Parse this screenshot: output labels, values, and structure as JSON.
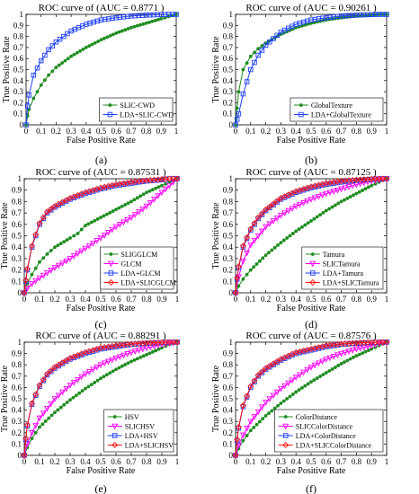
{
  "captions": [
    "(a)",
    "(b)",
    "(c)",
    "(d)",
    "(e)",
    "(f)"
  ],
  "chart_data": [
    {
      "type": "line",
      "title": "ROC curve of (AUC = 0.8771 )",
      "xlabel": "False Positive Rate",
      "ylabel": "True Positive Rate",
      "xlim": [
        0,
        1
      ],
      "ylim": [
        0,
        1
      ],
      "x_ticks": [
        "0",
        "0.1",
        "0.2",
        "0.3",
        "0.4",
        "0.5",
        "0.6",
        "0.7",
        "0.8",
        "0.9",
        "1"
      ],
      "y_ticks": [
        "0",
        "0.1",
        "0.2",
        "0.3",
        "0.4",
        "0.5",
        "0.6",
        "0.7",
        "0.8",
        "0.9",
        "1"
      ],
      "legend_position": "bottom-right",
      "series": [
        {
          "name": "SLIC-CWD",
          "color": "#1e8c1e",
          "marker": "dot",
          "x": [
            0,
            0.01,
            0.02,
            0.05,
            0.1,
            0.15,
            0.2,
            0.3,
            0.4,
            0.5,
            0.6,
            0.7,
            0.8,
            0.9,
            0.95,
            1.0
          ],
          "y": [
            0,
            0.08,
            0.14,
            0.24,
            0.36,
            0.45,
            0.52,
            0.62,
            0.7,
            0.77,
            0.83,
            0.88,
            0.92,
            0.96,
            0.98,
            1.0
          ]
        },
        {
          "name": "LDA+SLIC-CWD",
          "color": "#1f3fff",
          "marker": "square",
          "x": [
            0,
            0.01,
            0.02,
            0.05,
            0.1,
            0.15,
            0.2,
            0.3,
            0.4,
            0.5,
            0.6,
            0.7,
            0.8,
            0.9,
            0.95,
            1.0
          ],
          "y": [
            0,
            0.17,
            0.27,
            0.45,
            0.58,
            0.68,
            0.75,
            0.85,
            0.91,
            0.95,
            0.97,
            0.985,
            0.993,
            0.998,
            1.0,
            1.0
          ]
        }
      ]
    },
    {
      "type": "line",
      "title": "ROC curve of (AUC = 0.90261 )",
      "xlabel": "False Positive Rate",
      "ylabel": "True Positive Rate",
      "xlim": [
        0,
        1
      ],
      "ylim": [
        0,
        1
      ],
      "x_ticks": [
        "0",
        "0.1",
        "0.2",
        "0.3",
        "0.4",
        "0.5",
        "0.6",
        "0.7",
        "0.8",
        "0.9",
        "1"
      ],
      "y_ticks": [
        "0",
        "0.1",
        "0.2",
        "0.3",
        "0.4",
        "0.5",
        "0.6",
        "0.7",
        "0.8",
        "0.9",
        "1"
      ],
      "legend_position": "bottom-right",
      "series": [
        {
          "name": "GlobalTexture",
          "color": "#1e8c1e",
          "marker": "dot",
          "x": [
            0,
            0.01,
            0.02,
            0.05,
            0.1,
            0.15,
            0.2,
            0.3,
            0.4,
            0.5,
            0.6,
            0.7,
            0.8,
            0.9,
            0.95,
            1.0
          ],
          "y": [
            0,
            0.15,
            0.3,
            0.5,
            0.62,
            0.69,
            0.74,
            0.82,
            0.88,
            0.92,
            0.95,
            0.97,
            0.985,
            0.995,
            1.0,
            1.0
          ]
        },
        {
          "name": "LDA+GlobalTexture",
          "color": "#1f3fff",
          "marker": "square",
          "x": [
            0,
            0.01,
            0.02,
            0.05,
            0.1,
            0.15,
            0.2,
            0.3,
            0.4,
            0.5,
            0.6,
            0.7,
            0.8,
            0.9,
            0.95,
            1.0
          ],
          "y": [
            0,
            0.05,
            0.1,
            0.28,
            0.5,
            0.63,
            0.72,
            0.84,
            0.91,
            0.95,
            0.97,
            0.985,
            0.993,
            0.998,
            1.0,
            1.0
          ]
        }
      ]
    },
    {
      "type": "line",
      "title": "ROC curve of (AUC = 0.87531 )",
      "xlabel": "False Positive Rate",
      "ylabel": "True Positive Rate",
      "xlim": [
        0,
        1
      ],
      "ylim": [
        0,
        1
      ],
      "x_ticks": [
        "0",
        "0.1",
        "0.2",
        "0.3",
        "0.4",
        "0.5",
        "0.6",
        "0.7",
        "0.8",
        "0.9",
        "1"
      ],
      "y_ticks": [
        "0",
        "0.1",
        "0.2",
        "0.3",
        "0.4",
        "0.5",
        "0.6",
        "0.7",
        "0.8",
        "0.9",
        "1"
      ],
      "legend_position": "bottom-right",
      "series": [
        {
          "name": "SLIGGLCM",
          "color": "#1e8c1e",
          "marker": "dot",
          "x": [
            0,
            0.02,
            0.05,
            0.1,
            0.15,
            0.2,
            0.3,
            0.35,
            0.4,
            0.5,
            0.6,
            0.7,
            0.8,
            0.9,
            0.95,
            1.0
          ],
          "y": [
            0,
            0.08,
            0.16,
            0.27,
            0.34,
            0.4,
            0.48,
            0.52,
            0.59,
            0.66,
            0.73,
            0.8,
            0.88,
            0.94,
            0.97,
            1.0
          ]
        },
        {
          "name": "GLCM",
          "color": "#ff00ff",
          "marker": "triangle",
          "x": [
            0,
            0.02,
            0.05,
            0.1,
            0.2,
            0.3,
            0.4,
            0.5,
            0.6,
            0.7,
            0.8,
            0.9,
            0.95,
            1.0
          ],
          "y": [
            0,
            0.04,
            0.08,
            0.13,
            0.22,
            0.3,
            0.39,
            0.48,
            0.58,
            0.66,
            0.76,
            0.88,
            0.94,
            1.0
          ]
        },
        {
          "name": "LDA+GLCM",
          "color": "#1f3fff",
          "marker": "square",
          "x": [
            0,
            0.01,
            0.02,
            0.05,
            0.1,
            0.15,
            0.2,
            0.3,
            0.4,
            0.5,
            0.6,
            0.7,
            0.8,
            0.9,
            0.95,
            1.0
          ],
          "y": [
            0,
            0.1,
            0.2,
            0.4,
            0.6,
            0.7,
            0.75,
            0.82,
            0.87,
            0.91,
            0.94,
            0.96,
            0.98,
            0.99,
            1.0,
            1.0
          ]
        },
        {
          "name": "LDA+SLICGLCM",
          "color": "#ff1010",
          "marker": "diamond",
          "x": [
            0,
            0.01,
            0.02,
            0.05,
            0.1,
            0.15,
            0.2,
            0.3,
            0.4,
            0.5,
            0.6,
            0.7,
            0.8,
            0.9,
            0.95,
            1.0
          ],
          "y": [
            0,
            0.11,
            0.21,
            0.41,
            0.61,
            0.71,
            0.76,
            0.83,
            0.88,
            0.92,
            0.95,
            0.97,
            0.985,
            0.995,
            1.0,
            1.0
          ]
        }
      ]
    },
    {
      "type": "line",
      "title": "ROC curve of (AUC = 0.87125 )",
      "xlabel": "False Positive Rate",
      "ylabel": "True Positive Rate",
      "xlim": [
        0,
        1
      ],
      "ylim": [
        0,
        1
      ],
      "x_ticks": [
        "0",
        "0.1",
        "0.2",
        "0.3",
        "0.4",
        "0.5",
        "0.6",
        "0.7",
        "0.8",
        "0.9",
        "1"
      ],
      "y_ticks": [
        "0",
        "0.1",
        "0.2",
        "0.3",
        "0.4",
        "0.5",
        "0.6",
        "0.7",
        "0.8",
        "0.9",
        "1"
      ],
      "legend_position": "bottom-right",
      "series": [
        {
          "name": "Tamura",
          "color": "#1e8c1e",
          "marker": "dot",
          "x": [
            0,
            0.02,
            0.05,
            0.1,
            0.2,
            0.3,
            0.4,
            0.5,
            0.6,
            0.7,
            0.8,
            0.9,
            0.95,
            1.0
          ],
          "y": [
            0,
            0.06,
            0.12,
            0.2,
            0.33,
            0.44,
            0.54,
            0.63,
            0.72,
            0.8,
            0.87,
            0.94,
            0.97,
            1.0
          ]
        },
        {
          "name": "SLICTamura",
          "color": "#ff00ff",
          "marker": "triangle",
          "x": [
            0,
            0.02,
            0.05,
            0.1,
            0.2,
            0.3,
            0.4,
            0.5,
            0.6,
            0.7,
            0.8,
            0.9,
            0.95,
            1.0
          ],
          "y": [
            0,
            0.14,
            0.28,
            0.42,
            0.58,
            0.68,
            0.76,
            0.82,
            0.87,
            0.91,
            0.95,
            0.98,
            0.99,
            1.0
          ]
        },
        {
          "name": "LDA+Tamura",
          "color": "#1f3fff",
          "marker": "square",
          "x": [
            0,
            0.01,
            0.02,
            0.05,
            0.1,
            0.15,
            0.2,
            0.3,
            0.4,
            0.5,
            0.6,
            0.7,
            0.8,
            0.9,
            0.95,
            1.0
          ],
          "y": [
            0,
            0.12,
            0.22,
            0.4,
            0.55,
            0.65,
            0.72,
            0.82,
            0.88,
            0.92,
            0.95,
            0.97,
            0.985,
            0.995,
            1.0,
            1.0
          ]
        },
        {
          "name": "LDA+SLICTamura",
          "color": "#ff1010",
          "marker": "diamond",
          "x": [
            0,
            0.01,
            0.02,
            0.05,
            0.1,
            0.15,
            0.2,
            0.3,
            0.4,
            0.5,
            0.6,
            0.7,
            0.8,
            0.9,
            0.95,
            1.0
          ],
          "y": [
            0,
            0.13,
            0.23,
            0.41,
            0.56,
            0.66,
            0.73,
            0.83,
            0.89,
            0.93,
            0.96,
            0.98,
            0.99,
            0.997,
            1.0,
            1.0
          ]
        }
      ]
    },
    {
      "type": "line",
      "title": "ROC curve of (AUC = 0.88291 )",
      "xlabel": "False Positive Rate",
      "ylabel": "True Positive Rate",
      "xlim": [
        0,
        1
      ],
      "ylim": [
        0,
        1
      ],
      "x_ticks": [
        "0",
        "0.1",
        "0.2",
        "0.3",
        "0.4",
        "0.5",
        "0.6",
        "0.7",
        "0.8",
        "0.9",
        "1"
      ],
      "y_ticks": [
        "0",
        "0.1",
        "0.2",
        "0.3",
        "0.4",
        "0.5",
        "0.6",
        "0.7",
        "0.8",
        "0.9",
        "1"
      ],
      "legend_position": "bottom-right",
      "series": [
        {
          "name": "HSV",
          "color": "#1e8c1e",
          "marker": "dot",
          "x": [
            0,
            0.02,
            0.05,
            0.1,
            0.2,
            0.3,
            0.4,
            0.5,
            0.6,
            0.7,
            0.8,
            0.9,
            0.95,
            1.0
          ],
          "y": [
            0,
            0.07,
            0.15,
            0.25,
            0.38,
            0.49,
            0.59,
            0.68,
            0.76,
            0.83,
            0.89,
            0.95,
            0.98,
            1.0
          ]
        },
        {
          "name": "SLICHSV",
          "color": "#ff00ff",
          "marker": "triangle",
          "x": [
            0,
            0.02,
            0.05,
            0.1,
            0.2,
            0.3,
            0.4,
            0.5,
            0.6,
            0.7,
            0.8,
            0.9,
            0.95,
            1.0
          ],
          "y": [
            0,
            0.1,
            0.2,
            0.33,
            0.5,
            0.62,
            0.72,
            0.8,
            0.86,
            0.91,
            0.95,
            0.98,
            0.99,
            1.0
          ]
        },
        {
          "name": "LDA+HSV",
          "color": "#1f3fff",
          "marker": "square",
          "x": [
            0,
            0.01,
            0.02,
            0.05,
            0.1,
            0.15,
            0.2,
            0.3,
            0.4,
            0.5,
            0.6,
            0.7,
            0.8,
            0.9,
            0.95,
            1.0
          ],
          "y": [
            0,
            0.14,
            0.26,
            0.45,
            0.61,
            0.71,
            0.77,
            0.85,
            0.9,
            0.94,
            0.96,
            0.98,
            0.99,
            0.997,
            1.0,
            1.0
          ]
        },
        {
          "name": "LDA+SLICHSV",
          "color": "#ff1010",
          "marker": "diamond",
          "x": [
            0,
            0.01,
            0.02,
            0.05,
            0.1,
            0.15,
            0.2,
            0.3,
            0.4,
            0.5,
            0.6,
            0.7,
            0.8,
            0.9,
            0.95,
            1.0
          ],
          "y": [
            0,
            0.15,
            0.27,
            0.46,
            0.62,
            0.72,
            0.78,
            0.86,
            0.91,
            0.95,
            0.97,
            0.985,
            0.993,
            0.998,
            1.0,
            1.0
          ]
        }
      ]
    },
    {
      "type": "line",
      "title": "ROC curve of (AUC = 0.87576 )",
      "xlabel": "False Positive Rate",
      "ylabel": "True Positive Rate",
      "xlim": [
        0,
        1
      ],
      "ylim": [
        0,
        1
      ],
      "x_ticks": [
        "0",
        "0.1",
        "0.2",
        "0.3",
        "0.4",
        "0.5",
        "0.6",
        "0.7",
        "0.8",
        "0.9",
        "1"
      ],
      "y_ticks": [
        "0",
        "0.1",
        "0.2",
        "0.3",
        "0.4",
        "0.5",
        "0.6",
        "0.7",
        "0.8",
        "0.9",
        "1"
      ],
      "legend_position": "bottom-right",
      "series": [
        {
          "name": "ColorDistance",
          "color": "#1e8c1e",
          "marker": "dot",
          "x": [
            0,
            0.02,
            0.05,
            0.1,
            0.2,
            0.3,
            0.4,
            0.5,
            0.6,
            0.7,
            0.8,
            0.9,
            0.95,
            1.0
          ],
          "y": [
            0,
            0.06,
            0.13,
            0.22,
            0.35,
            0.46,
            0.56,
            0.65,
            0.73,
            0.81,
            0.88,
            0.94,
            0.97,
            1.0
          ]
        },
        {
          "name": "SLICColorDistance",
          "color": "#ff00ff",
          "marker": "triangle",
          "x": [
            0,
            0.02,
            0.05,
            0.1,
            0.2,
            0.3,
            0.4,
            0.5,
            0.6,
            0.7,
            0.8,
            0.9,
            0.95,
            1.0
          ],
          "y": [
            0,
            0.09,
            0.18,
            0.3,
            0.47,
            0.59,
            0.69,
            0.78,
            0.85,
            0.9,
            0.94,
            0.97,
            0.99,
            1.0
          ]
        },
        {
          "name": "LDA+ColorDistance",
          "color": "#1f3fff",
          "marker": "square",
          "x": [
            0,
            0.01,
            0.02,
            0.05,
            0.1,
            0.15,
            0.2,
            0.3,
            0.4,
            0.5,
            0.6,
            0.7,
            0.8,
            0.9,
            0.95,
            1.0
          ],
          "y": [
            0,
            0.13,
            0.24,
            0.43,
            0.6,
            0.7,
            0.76,
            0.84,
            0.9,
            0.93,
            0.96,
            0.98,
            0.99,
            0.997,
            1.0,
            1.0
          ]
        },
        {
          "name": "LDA+SLICColorDistance",
          "color": "#ff1010",
          "marker": "diamond",
          "x": [
            0,
            0.01,
            0.02,
            0.05,
            0.1,
            0.15,
            0.2,
            0.3,
            0.4,
            0.5,
            0.6,
            0.7,
            0.8,
            0.9,
            0.95,
            1.0
          ],
          "y": [
            0,
            0.14,
            0.25,
            0.44,
            0.61,
            0.71,
            0.77,
            0.85,
            0.91,
            0.94,
            0.97,
            0.985,
            0.993,
            0.998,
            1.0,
            1.0
          ]
        }
      ]
    }
  ]
}
